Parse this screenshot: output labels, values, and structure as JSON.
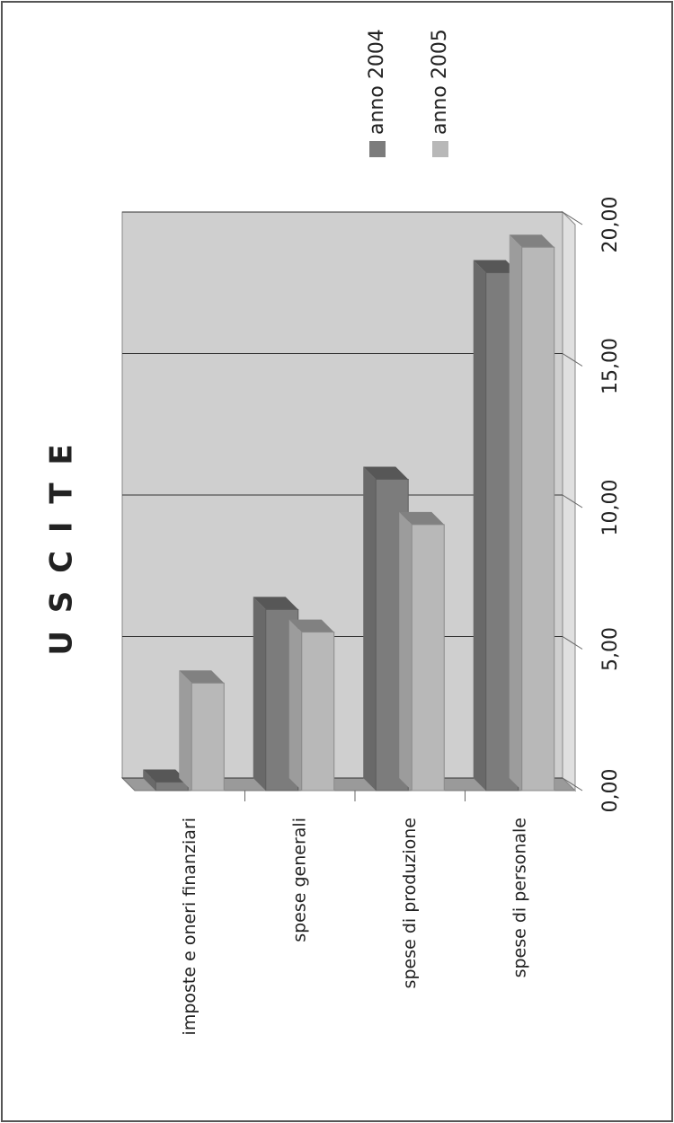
{
  "chart_data": {
    "type": "bar3d",
    "title": "U S C I T E",
    "categories": [
      "imposte e oneri finanziari",
      "spese generali",
      "spese di produzione",
      "spese di personale"
    ],
    "series": [
      {
        "name": "anno 2004",
        "color": "#7c7c7c",
        "values": [
          0.3,
          6.4,
          11.0,
          18.3
        ]
      },
      {
        "name": "anno 2005",
        "color": "#b8b8b8",
        "values": [
          3.8,
          5.6,
          9.4,
          19.2
        ]
      }
    ],
    "xlim": [
      0,
      20
    ],
    "xticks": [
      {
        "value": 0,
        "label": "0,00"
      },
      {
        "value": 5,
        "label": "5,00"
      },
      {
        "value": 10,
        "label": "10,00"
      },
      {
        "value": 15,
        "label": "15,00"
      },
      {
        "value": 20,
        "label": "20,00"
      }
    ],
    "grid": true,
    "legend": "right"
  }
}
